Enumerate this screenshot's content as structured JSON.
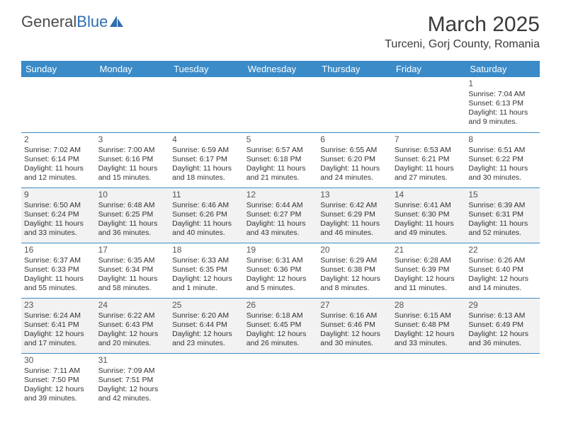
{
  "logo": {
    "part1": "General",
    "part2": "Blue"
  },
  "title": "March 2025",
  "subtitle": "Turceni, Gorj County, Romania",
  "theme": {
    "header_bg": "#3b8bc8",
    "header_fg": "#ffffff",
    "row_alt_bg": "#f2f2f2",
    "row_bg": "#ffffff",
    "border_color": "#3b8bc8",
    "text_color": "#333333",
    "title_fontsize": 30,
    "subtitle_fontsize": 16,
    "cell_fontsize": 10.5
  },
  "daynames": [
    "Sunday",
    "Monday",
    "Tuesday",
    "Wednesday",
    "Thursday",
    "Friday",
    "Saturday"
  ],
  "weeks": [
    [
      null,
      null,
      null,
      null,
      null,
      null,
      {
        "n": "1",
        "sr": "Sunrise: 7:04 AM",
        "ss": "Sunset: 6:13 PM",
        "d1": "Daylight: 11 hours",
        "d2": "and 9 minutes."
      }
    ],
    [
      {
        "n": "2",
        "sr": "Sunrise: 7:02 AM",
        "ss": "Sunset: 6:14 PM",
        "d1": "Daylight: 11 hours",
        "d2": "and 12 minutes."
      },
      {
        "n": "3",
        "sr": "Sunrise: 7:00 AM",
        "ss": "Sunset: 6:16 PM",
        "d1": "Daylight: 11 hours",
        "d2": "and 15 minutes."
      },
      {
        "n": "4",
        "sr": "Sunrise: 6:59 AM",
        "ss": "Sunset: 6:17 PM",
        "d1": "Daylight: 11 hours",
        "d2": "and 18 minutes."
      },
      {
        "n": "5",
        "sr": "Sunrise: 6:57 AM",
        "ss": "Sunset: 6:18 PM",
        "d1": "Daylight: 11 hours",
        "d2": "and 21 minutes."
      },
      {
        "n": "6",
        "sr": "Sunrise: 6:55 AM",
        "ss": "Sunset: 6:20 PM",
        "d1": "Daylight: 11 hours",
        "d2": "and 24 minutes."
      },
      {
        "n": "7",
        "sr": "Sunrise: 6:53 AM",
        "ss": "Sunset: 6:21 PM",
        "d1": "Daylight: 11 hours",
        "d2": "and 27 minutes."
      },
      {
        "n": "8",
        "sr": "Sunrise: 6:51 AM",
        "ss": "Sunset: 6:22 PM",
        "d1": "Daylight: 11 hours",
        "d2": "and 30 minutes."
      }
    ],
    [
      {
        "n": "9",
        "sr": "Sunrise: 6:50 AM",
        "ss": "Sunset: 6:24 PM",
        "d1": "Daylight: 11 hours",
        "d2": "and 33 minutes."
      },
      {
        "n": "10",
        "sr": "Sunrise: 6:48 AM",
        "ss": "Sunset: 6:25 PM",
        "d1": "Daylight: 11 hours",
        "d2": "and 36 minutes."
      },
      {
        "n": "11",
        "sr": "Sunrise: 6:46 AM",
        "ss": "Sunset: 6:26 PM",
        "d1": "Daylight: 11 hours",
        "d2": "and 40 minutes."
      },
      {
        "n": "12",
        "sr": "Sunrise: 6:44 AM",
        "ss": "Sunset: 6:27 PM",
        "d1": "Daylight: 11 hours",
        "d2": "and 43 minutes."
      },
      {
        "n": "13",
        "sr": "Sunrise: 6:42 AM",
        "ss": "Sunset: 6:29 PM",
        "d1": "Daylight: 11 hours",
        "d2": "and 46 minutes."
      },
      {
        "n": "14",
        "sr": "Sunrise: 6:41 AM",
        "ss": "Sunset: 6:30 PM",
        "d1": "Daylight: 11 hours",
        "d2": "and 49 minutes."
      },
      {
        "n": "15",
        "sr": "Sunrise: 6:39 AM",
        "ss": "Sunset: 6:31 PM",
        "d1": "Daylight: 11 hours",
        "d2": "and 52 minutes."
      }
    ],
    [
      {
        "n": "16",
        "sr": "Sunrise: 6:37 AM",
        "ss": "Sunset: 6:33 PM",
        "d1": "Daylight: 11 hours",
        "d2": "and 55 minutes."
      },
      {
        "n": "17",
        "sr": "Sunrise: 6:35 AM",
        "ss": "Sunset: 6:34 PM",
        "d1": "Daylight: 11 hours",
        "d2": "and 58 minutes."
      },
      {
        "n": "18",
        "sr": "Sunrise: 6:33 AM",
        "ss": "Sunset: 6:35 PM",
        "d1": "Daylight: 12 hours",
        "d2": "and 1 minute."
      },
      {
        "n": "19",
        "sr": "Sunrise: 6:31 AM",
        "ss": "Sunset: 6:36 PM",
        "d1": "Daylight: 12 hours",
        "d2": "and 5 minutes."
      },
      {
        "n": "20",
        "sr": "Sunrise: 6:29 AM",
        "ss": "Sunset: 6:38 PM",
        "d1": "Daylight: 12 hours",
        "d2": "and 8 minutes."
      },
      {
        "n": "21",
        "sr": "Sunrise: 6:28 AM",
        "ss": "Sunset: 6:39 PM",
        "d1": "Daylight: 12 hours",
        "d2": "and 11 minutes."
      },
      {
        "n": "22",
        "sr": "Sunrise: 6:26 AM",
        "ss": "Sunset: 6:40 PM",
        "d1": "Daylight: 12 hours",
        "d2": "and 14 minutes."
      }
    ],
    [
      {
        "n": "23",
        "sr": "Sunrise: 6:24 AM",
        "ss": "Sunset: 6:41 PM",
        "d1": "Daylight: 12 hours",
        "d2": "and 17 minutes."
      },
      {
        "n": "24",
        "sr": "Sunrise: 6:22 AM",
        "ss": "Sunset: 6:43 PM",
        "d1": "Daylight: 12 hours",
        "d2": "and 20 minutes."
      },
      {
        "n": "25",
        "sr": "Sunrise: 6:20 AM",
        "ss": "Sunset: 6:44 PM",
        "d1": "Daylight: 12 hours",
        "d2": "and 23 minutes."
      },
      {
        "n": "26",
        "sr": "Sunrise: 6:18 AM",
        "ss": "Sunset: 6:45 PM",
        "d1": "Daylight: 12 hours",
        "d2": "and 26 minutes."
      },
      {
        "n": "27",
        "sr": "Sunrise: 6:16 AM",
        "ss": "Sunset: 6:46 PM",
        "d1": "Daylight: 12 hours",
        "d2": "and 30 minutes."
      },
      {
        "n": "28",
        "sr": "Sunrise: 6:15 AM",
        "ss": "Sunset: 6:48 PM",
        "d1": "Daylight: 12 hours",
        "d2": "and 33 minutes."
      },
      {
        "n": "29",
        "sr": "Sunrise: 6:13 AM",
        "ss": "Sunset: 6:49 PM",
        "d1": "Daylight: 12 hours",
        "d2": "and 36 minutes."
      }
    ],
    [
      {
        "n": "30",
        "sr": "Sunrise: 7:11 AM",
        "ss": "Sunset: 7:50 PM",
        "d1": "Daylight: 12 hours",
        "d2": "and 39 minutes."
      },
      {
        "n": "31",
        "sr": "Sunrise: 7:09 AM",
        "ss": "Sunset: 7:51 PM",
        "d1": "Daylight: 12 hours",
        "d2": "and 42 minutes."
      },
      null,
      null,
      null,
      null,
      null
    ]
  ]
}
